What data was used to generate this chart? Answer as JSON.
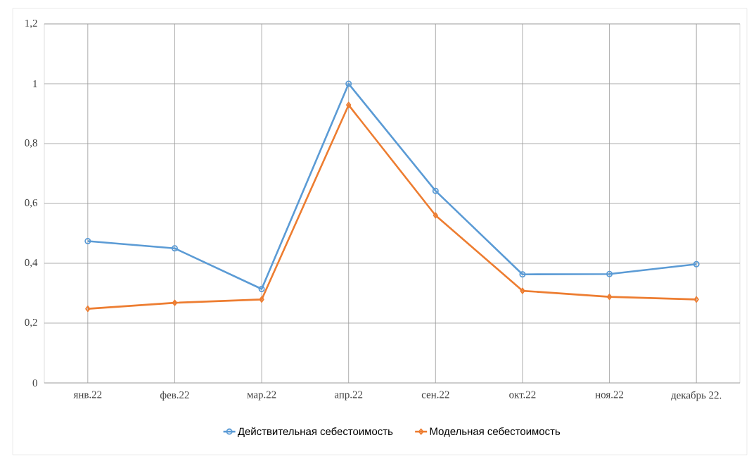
{
  "chart_data": {
    "type": "line",
    "categories": [
      "янв.22",
      "фев.22",
      "мар.22",
      "апр.22",
      "сен.22",
      "окт.22",
      "ноя.22",
      "декабрь 22."
    ],
    "series": [
      {
        "name": "Действительная себестоимость",
        "color": "#5b9bd5",
        "marker": "circle",
        "values": [
          0.474,
          0.45,
          0.314,
          1.0,
          0.642,
          0.363,
          0.364,
          0.397
        ]
      },
      {
        "name": "Модельная себестоимость",
        "color": "#ed7d31",
        "marker": "diamond",
        "values": [
          0.248,
          0.268,
          0.279,
          0.929,
          0.56,
          0.308,
          0.288,
          0.279
        ]
      }
    ],
    "ylim": [
      0,
      1.2
    ],
    "yticks": [
      0,
      {
        "value": 0.2,
        "label": "0,2"
      },
      {
        "value": 0.4,
        "label": "0,4"
      },
      {
        "value": 0.6,
        "label": "0,6"
      },
      {
        "value": 0.8,
        "label": "0,8"
      },
      1,
      {
        "value": 1.2,
        "label": "1,2"
      }
    ],
    "grid": true,
    "legend": "bottom",
    "line_style": "solid"
  }
}
